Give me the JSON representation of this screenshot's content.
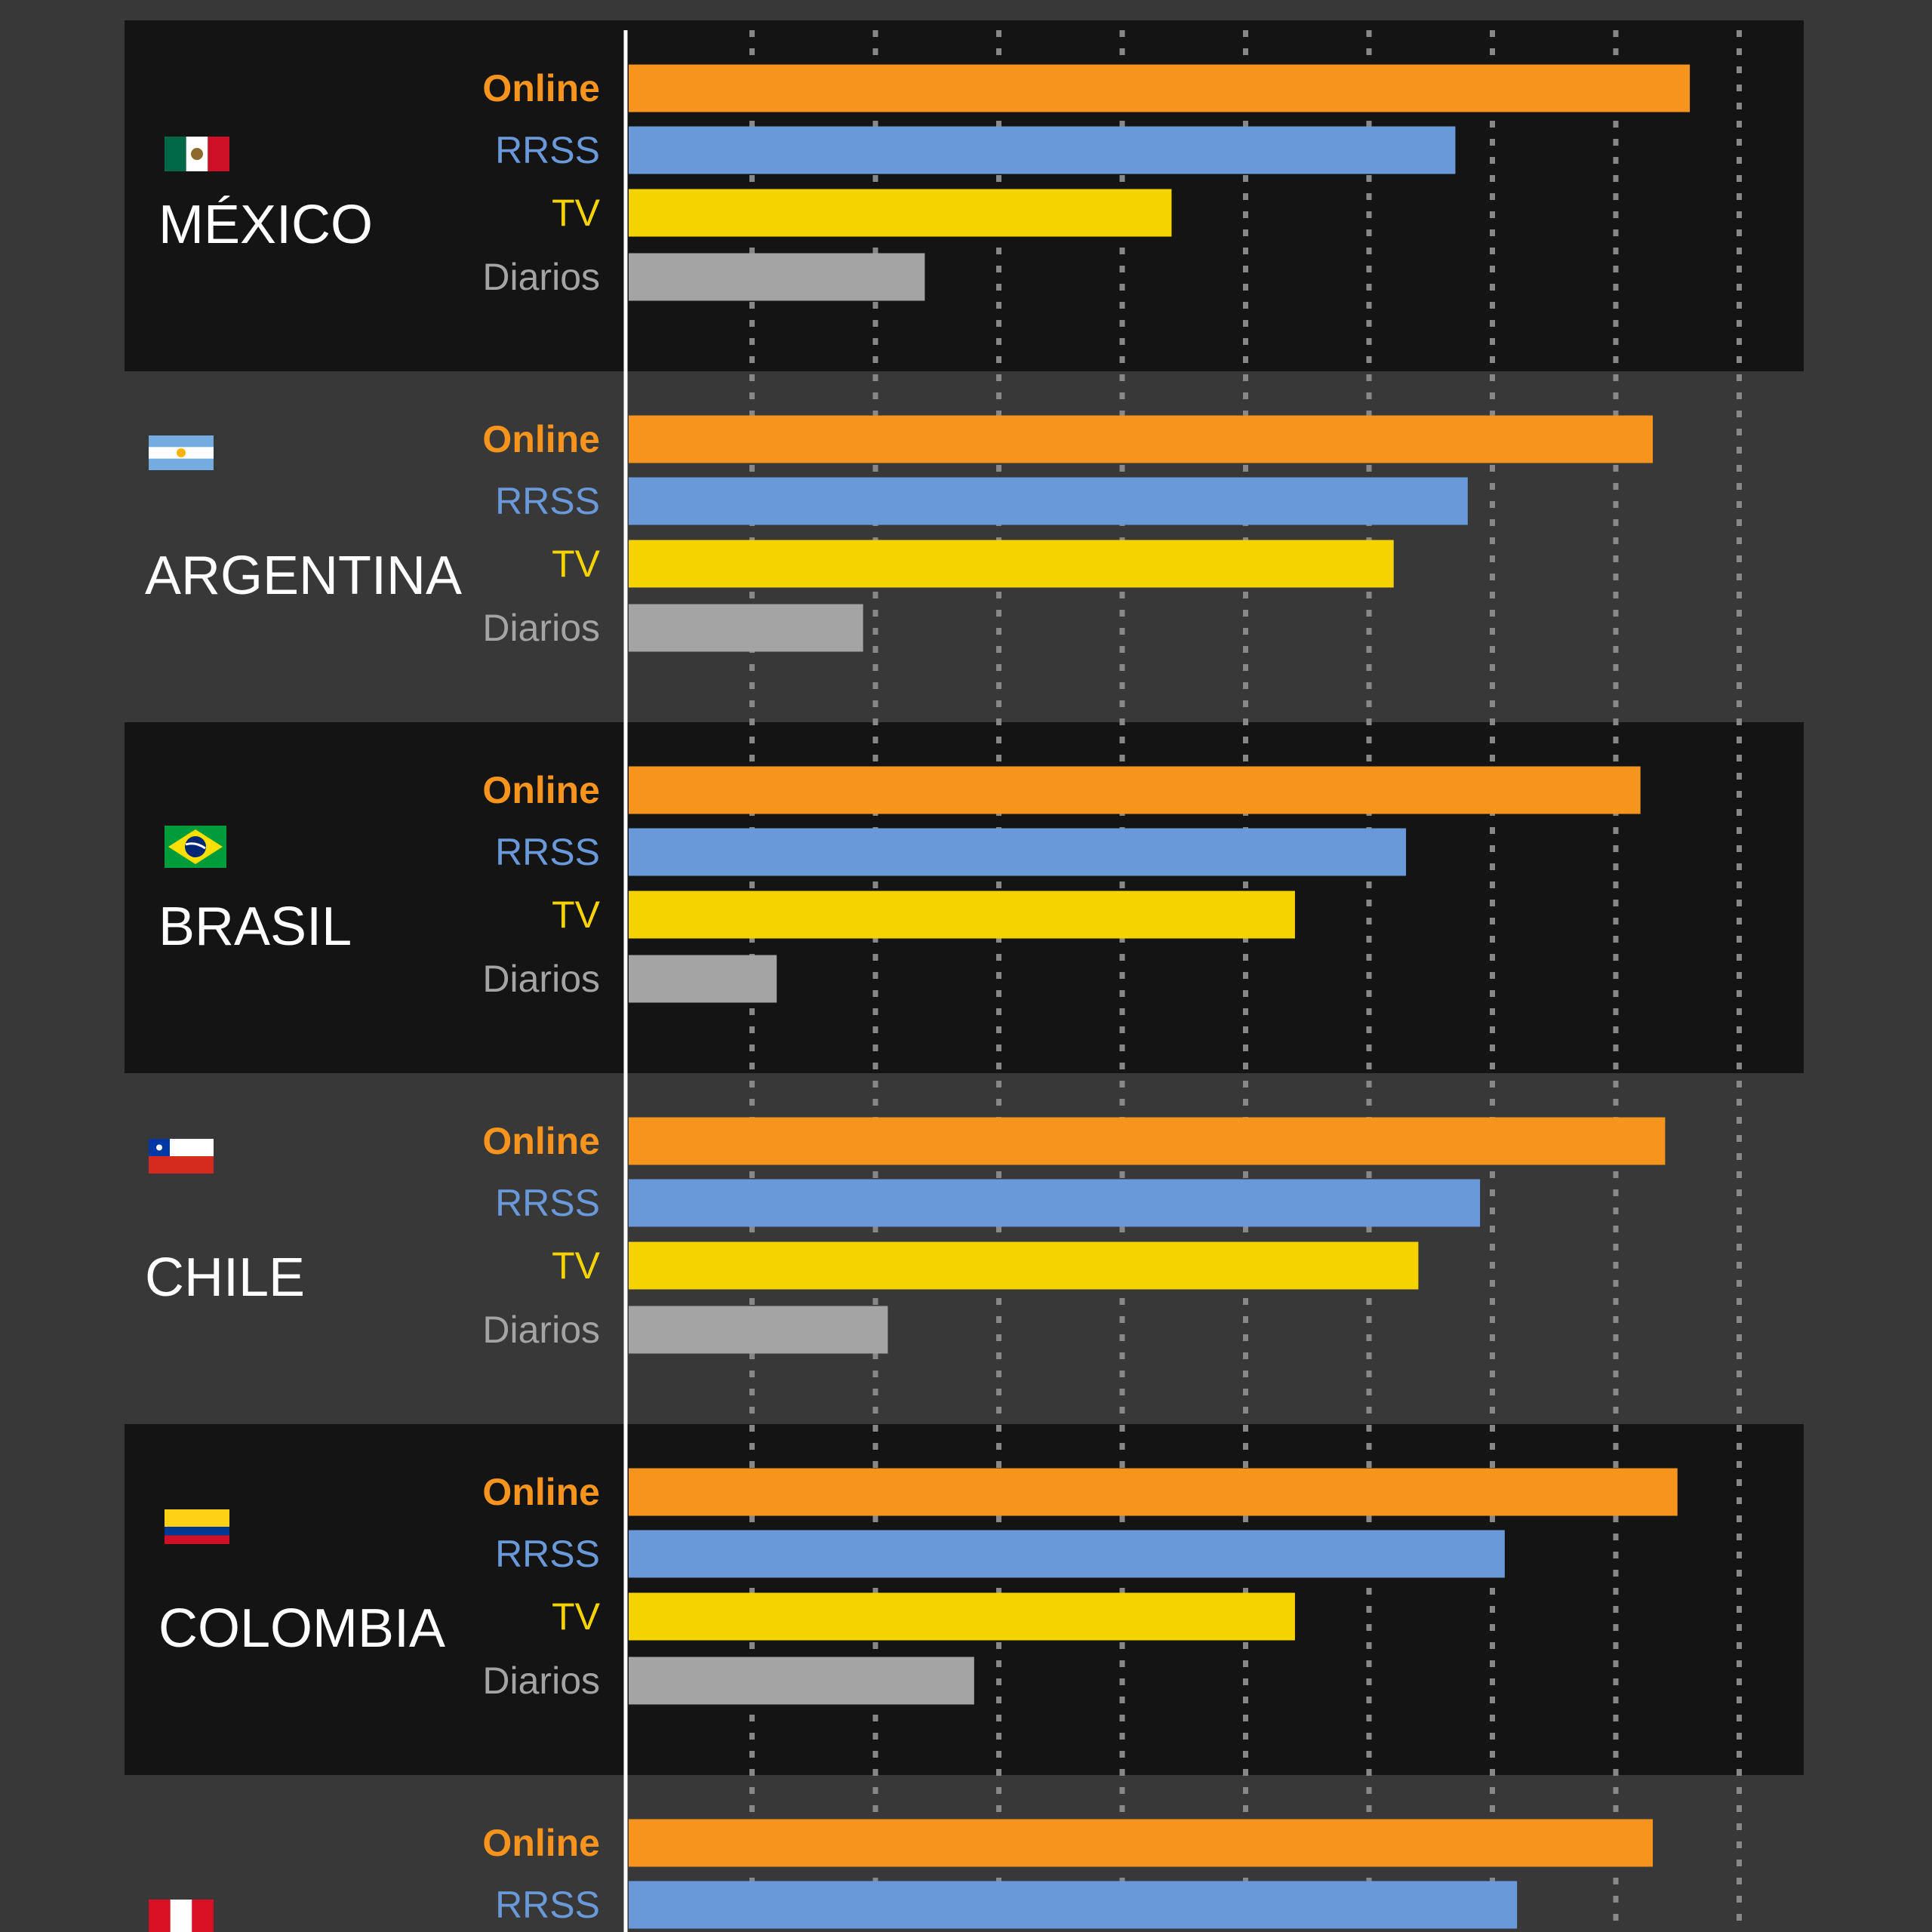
{
  "colors": {
    "page_background": "#383838",
    "panel_dark": "#141414",
    "Online": "#F7941D",
    "RRSS": "#6A99D9",
    "TV": "#F5D300",
    "Diarios": "#A4A4A4",
    "axis_line": "#FFFFFF",
    "grid": "#888888",
    "country_text": "#FFFFFF"
  },
  "chart_data": {
    "type": "bar",
    "orientation": "horizontal",
    "categories": [
      "Online",
      "RRSS",
      "TV",
      "Diarios"
    ],
    "xlim": [
      0,
      90
    ],
    "grid": "dotted vertical lines every 10 units",
    "groups": [
      {
        "country": "MÉXICO",
        "flag": "mexico",
        "panel": "dark",
        "values": {
          "Online": 86,
          "RRSS": 67,
          "TV": 44,
          "Diarios": 24
        }
      },
      {
        "country": "ARGENTINA",
        "flag": "argentina",
        "panel": "light",
        "values": {
          "Online": 83,
          "RRSS": 68,
          "TV": 62,
          "Diarios": 19
        }
      },
      {
        "country": "BRASIL",
        "flag": "brazil",
        "panel": "dark",
        "values": {
          "Online": 82,
          "RRSS": 63,
          "TV": 54,
          "Diarios": 12
        }
      },
      {
        "country": "CHILE",
        "flag": "chile",
        "panel": "light",
        "values": {
          "Online": 84,
          "RRSS": 69,
          "TV": 64,
          "Diarios": 21
        }
      },
      {
        "country": "COLOMBIA",
        "flag": "colombia",
        "panel": "dark",
        "values": {
          "Online": 85,
          "RRSS": 71,
          "TV": 54,
          "Diarios": 28
        }
      },
      {
        "country": "",
        "flag": "peru",
        "panel": "light",
        "values": {
          "Online": 83,
          "RRSS": 72
        }
      }
    ]
  }
}
